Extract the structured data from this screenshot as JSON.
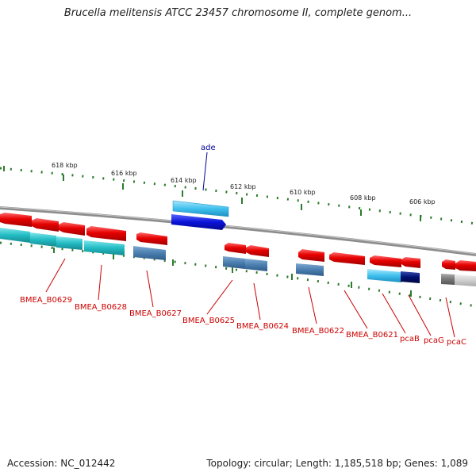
{
  "title": "Brucella melitensis ATCC 23457 chromosome II, complete genom...",
  "footer": {
    "accession": "Accession: NC_012442",
    "stats": "Topology: circular; Length: 1,185,518 bp; Genes: 1,089"
  },
  "ticks": [
    "618 kbp",
    "616 kbp",
    "614 kbp",
    "612 kbp",
    "610 kbp",
    "608 kbp",
    "606 kbp"
  ],
  "labels": {
    "ade": "ade",
    "b0629": "BMEA_B0629",
    "b0628": "BMEA_B0628",
    "b0627": "BMEA_B0627",
    "b0625": "BMEA_B0625",
    "b0624": "BMEA_B0624",
    "b0622": "BMEA_B0622",
    "b0621": "BMEA_B0621",
    "pcaB": "pcaB",
    "pcaG": "pcaG",
    "pcaC": "pcaC"
  },
  "colors": {
    "backbone": "#8c8c8c",
    "gene_forward": "#e60000",
    "cds_reverse": "#22bcc4",
    "cds_steel": "#4a7fb0",
    "ade_light": "#3fc0ee",
    "ade_dark": "#0a14d8",
    "pca_dark": "#001070",
    "pcaC_gray": "#777777",
    "tick_green": "#2c7a2c",
    "label_red": "#cc0000",
    "label_blue": "#000099"
  }
}
